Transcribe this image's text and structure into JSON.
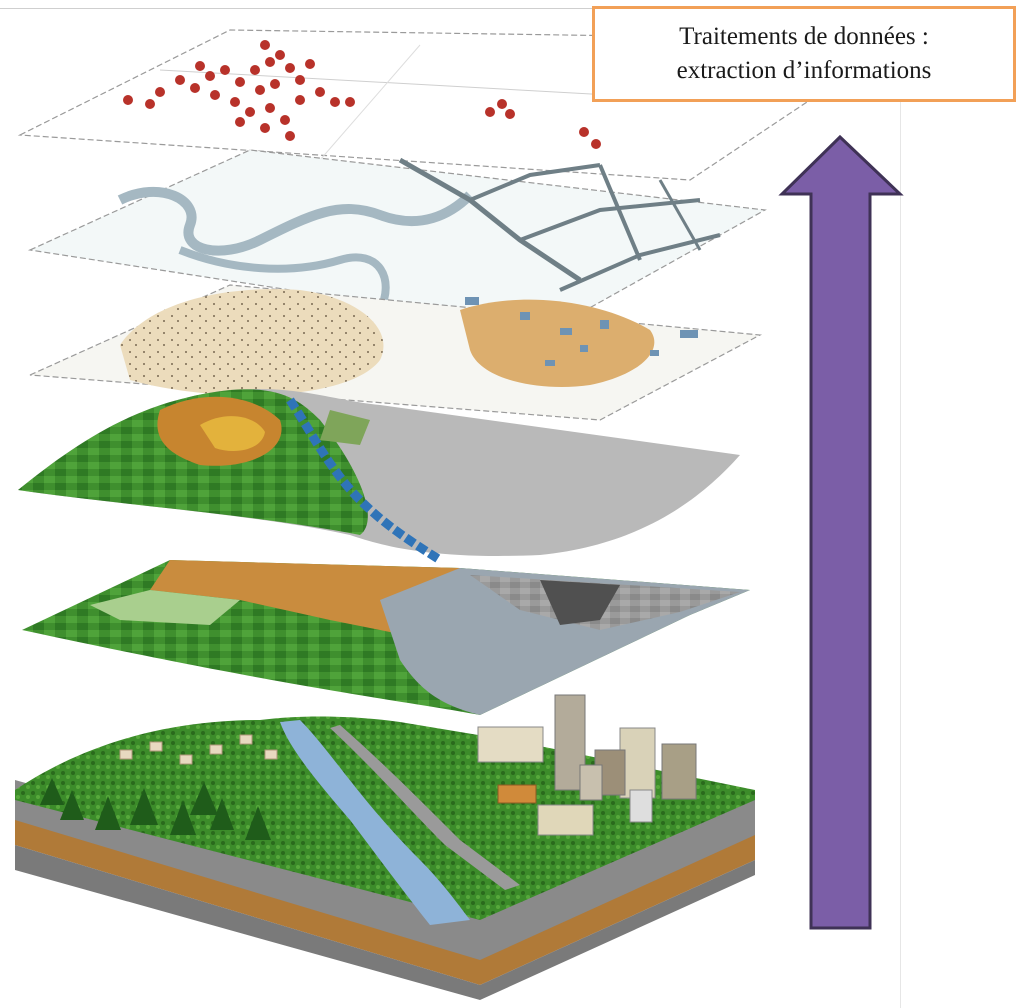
{
  "caption": {
    "line1": "Traitements de données :",
    "line2": "extraction d’informations"
  },
  "colors": {
    "arrow_fill": "#7b5ea7",
    "arrow_stroke": "#3f3256",
    "caption_border": "#f2a057",
    "point_red": "#b8322a",
    "vegetation_green": "#3f8f2e",
    "water_blue": "#2f74b8",
    "soil_brown": "#c48a3f",
    "urban_grey": "#8c8c8c"
  },
  "layers": [
    "points-layer",
    "road-network-layer",
    "soil-terrain-layer",
    "elevation-landcover-layer",
    "landuse-raster-layer",
    "real-world-block"
  ],
  "arrow_direction": "up"
}
